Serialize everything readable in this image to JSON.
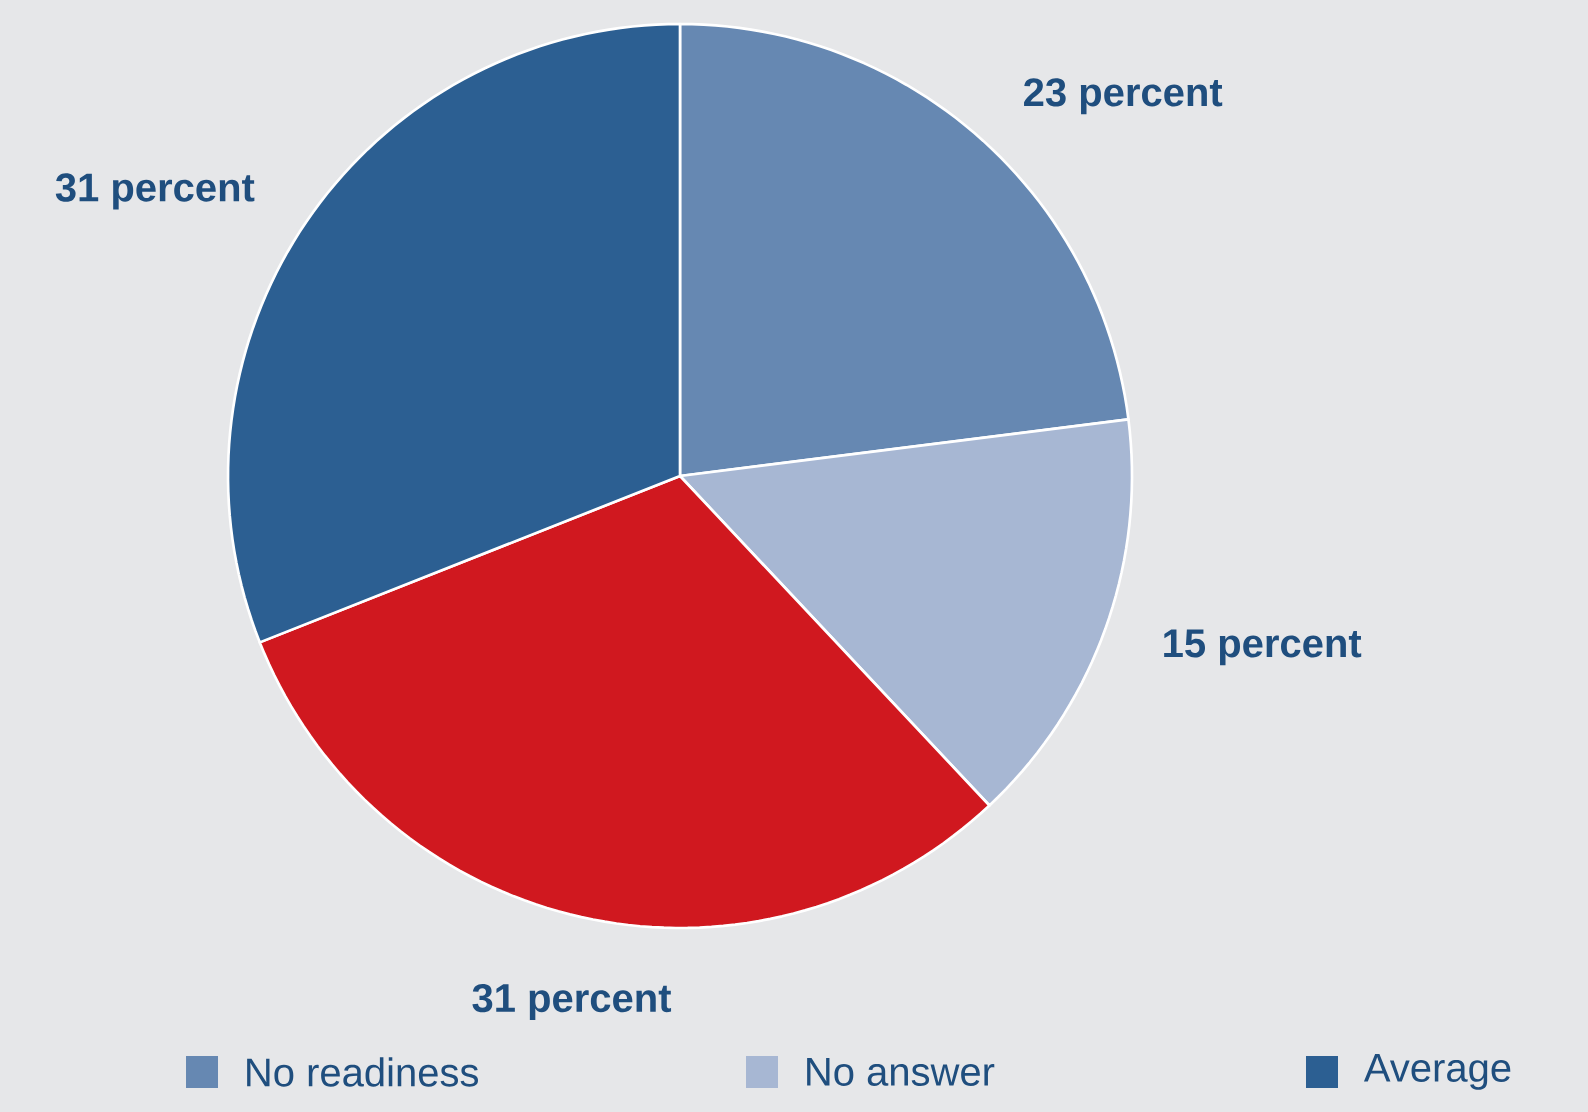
{
  "chart_data": {
    "type": "pie",
    "categories": [
      "No readiness",
      "No answer",
      null,
      "Average"
    ],
    "values": [
      23,
      15,
      31,
      31
    ],
    "colors": [
      "#6688b2",
      "#a7b7d3",
      "#d0181f",
      "#2c5f92"
    ],
    "value_labels": [
      "23 percent",
      "15 percent",
      "31 percent",
      "31 percent"
    ],
    "legend": "bottom"
  }
}
